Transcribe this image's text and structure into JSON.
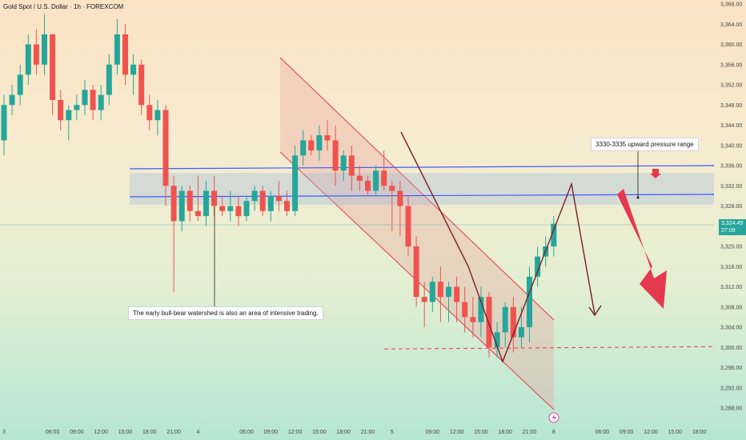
{
  "title": "Gold Spot / U.S. Dollar · 1h · FOREXCOM",
  "colors": {
    "up": "#26a69a",
    "down": "#ef5350",
    "band": "#3d5afe",
    "channel": "#e53950",
    "wick": "#333333",
    "arrow": "#7b1f2a"
  },
  "annotations": {
    "left": "The early bull-bear watershed is also an area of intensive trading.",
    "right": "3330-3335 upward pressure range"
  },
  "current": {
    "price": "3,324.49",
    "timer": "27:09"
  },
  "lightning_icon": "lightning-icon",
  "chart_data": {
    "type": "candlestick",
    "title": "Gold Spot / U.S. Dollar · 1h · FOREXCOM",
    "ylim": [
      3286,
      3368
    ],
    "y_ticks": [
      3288,
      3292,
      3296,
      3300,
      3304,
      3308,
      3312,
      3316,
      3320,
      3324,
      3328,
      3332,
      3336,
      3340,
      3344,
      3348,
      3352,
      3356,
      3360,
      3364,
      3368
    ],
    "x_ticks": [
      {
        "label": "3",
        "i": 0
      },
      {
        "label": "06:00",
        "i": 6
      },
      {
        "label": "09:00",
        "i": 9
      },
      {
        "label": "12:00",
        "i": 12
      },
      {
        "label": "15:00",
        "i": 15
      },
      {
        "label": "18:00",
        "i": 18
      },
      {
        "label": "21:00",
        "i": 21
      },
      {
        "label": "4",
        "i": 24
      },
      {
        "label": "06:00",
        "i": 30
      },
      {
        "label": "09:00",
        "i": 33
      },
      {
        "label": "12:00",
        "i": 36
      },
      {
        "label": "15:00",
        "i": 39
      },
      {
        "label": "18:00",
        "i": 42
      },
      {
        "label": "21:00",
        "i": 45
      },
      {
        "label": "5",
        "i": 48
      },
      {
        "label": "09:00",
        "i": 53
      },
      {
        "label": "12:00",
        "i": 56
      },
      {
        "label": "15:00",
        "i": 59
      },
      {
        "label": "18:00",
        "i": 62
      },
      {
        "label": "21:00",
        "i": 65
      },
      {
        "label": "8",
        "i": 68
      },
      {
        "label": "06:00",
        "i": 74
      },
      {
        "label": "09:00",
        "i": 77
      },
      {
        "label": "12:00",
        "i": 80
      },
      {
        "label": "15:00",
        "i": 83
      },
      {
        "label": "18:00",
        "i": 86
      }
    ],
    "candles": [
      [
        3341,
        3350,
        3338,
        3348
      ],
      [
        3348,
        3352,
        3346,
        3350
      ],
      [
        3350,
        3356,
        3348,
        3354
      ],
      [
        3354,
        3362,
        3352,
        3360
      ],
      [
        3360,
        3363,
        3354,
        3356
      ],
      [
        3356,
        3366,
        3354,
        3362
      ],
      [
        3362,
        3362,
        3346,
        3349
      ],
      [
        3349,
        3351,
        3343,
        3345
      ],
      [
        3345,
        3348,
        3341,
        3347
      ],
      [
        3347,
        3350,
        3345,
        3348
      ],
      [
        3348,
        3353,
        3346,
        3351
      ],
      [
        3351,
        3352,
        3345,
        3347
      ],
      [
        3347,
        3352,
        3345,
        3350
      ],
      [
        3350,
        3358,
        3348,
        3356
      ],
      [
        3356,
        3365,
        3354,
        3362
      ],
      [
        3362,
        3364,
        3352,
        3354
      ],
      [
        3354,
        3358,
        3350,
        3356
      ],
      [
        3356,
        3357,
        3346,
        3348
      ],
      [
        3348,
        3350,
        3343,
        3345
      ],
      [
        3345,
        3349,
        3342,
        3347
      ],
      [
        3347,
        3348,
        3328,
        3332
      ],
      [
        3332,
        3334,
        3311,
        3325
      ],
      [
        3325,
        3332,
        3323,
        3331
      ],
      [
        3331,
        3332,
        3325,
        3327
      ],
      [
        3327,
        3334,
        3325,
        3326
      ],
      [
        3326,
        3333,
        3324,
        3331
      ],
      [
        3331,
        3334,
        3326,
        3328
      ],
      [
        3328,
        3330,
        3326,
        3327
      ],
      [
        3327,
        3331,
        3325,
        3328
      ],
      [
        3328,
        3330,
        3324,
        3326
      ],
      [
        3326,
        3330,
        3325,
        3329
      ],
      [
        3329,
        3332,
        3327,
        3331
      ],
      [
        3331,
        3332,
        3326,
        3327
      ],
      [
        3327,
        3331,
        3325,
        3330
      ],
      [
        3330,
        3333,
        3327,
        3329
      ],
      [
        3329,
        3331,
        3326,
        3327
      ],
      [
        3327,
        3340,
        3326,
        3338
      ],
      [
        3338,
        3343,
        3336,
        3341
      ],
      [
        3341,
        3342,
        3338,
        3339
      ],
      [
        3339,
        3344,
        3337,
        3342
      ],
      [
        3342,
        3345,
        3339,
        3341
      ],
      [
        3341,
        3344,
        3332,
        3335
      ],
      [
        3335,
        3339,
        3333,
        3338
      ],
      [
        3338,
        3340,
        3331,
        3334
      ],
      [
        3334,
        3336,
        3331,
        3333
      ],
      [
        3333,
        3334,
        3330,
        3331
      ],
      [
        3331,
        3336,
        3330,
        3335
      ],
      [
        3335,
        3339,
        3331,
        3332
      ],
      [
        3332,
        3333,
        3323,
        3331
      ],
      [
        3331,
        3333,
        3322,
        3328
      ],
      [
        3328,
        3330,
        3318,
        3320
      ],
      [
        3320,
        3322,
        3308,
        3310
      ],
      [
        3310,
        3313,
        3304,
        3309
      ],
      [
        3309,
        3314,
        3307,
        3313
      ],
      [
        3313,
        3316,
        3305,
        3310
      ],
      [
        3310,
        3313,
        3305,
        3312
      ],
      [
        3312,
        3314,
        3305,
        3309
      ],
      [
        3309,
        3312,
        3303,
        3306
      ],
      [
        3306,
        3310,
        3302,
        3305
      ],
      [
        3305,
        3312,
        3302,
        3310
      ],
      [
        3310,
        3311,
        3298,
        3300
      ],
      [
        3300,
        3305,
        3298,
        3303
      ],
      [
        3303,
        3309,
        3300,
        3308
      ],
      [
        3308,
        3310,
        3299,
        3302
      ],
      [
        3302,
        3308,
        3300,
        3304
      ],
      [
        3304,
        3316,
        3301,
        3314
      ],
      [
        3314,
        3320,
        3312,
        3318
      ],
      [
        3318,
        3322,
        3316,
        3320
      ],
      [
        3320,
        3326,
        3318,
        3324.49
      ]
    ],
    "zones": [
      {
        "label": "3330-3335 upward pressure range",
        "from": 3330,
        "to": 3335
      }
    ],
    "levels": [
      {
        "value": 3300,
        "style": "dashed"
      }
    ]
  }
}
